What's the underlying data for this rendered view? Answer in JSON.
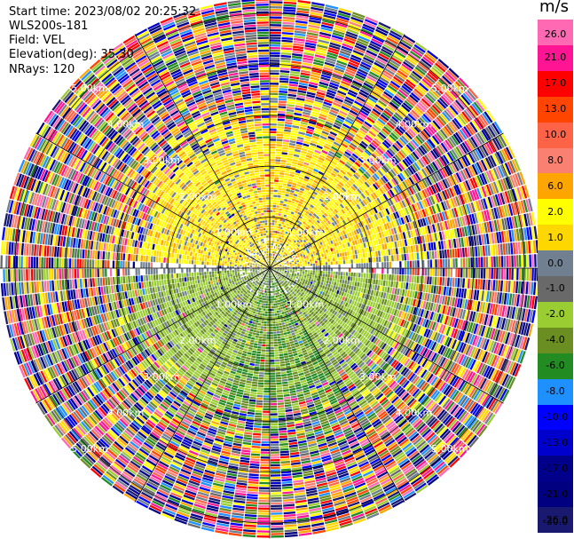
{
  "info": {
    "start_time": "Start time: 2023/08/02 20:25:32",
    "device": "WLS200s-181",
    "field": "Field: VEL",
    "elevation": "Elevation(deg): 35.30",
    "nrays": "NRays: 120"
  },
  "chart_data": {
    "type": "heatmap",
    "projection": "polar-ppi",
    "field": "VEL",
    "units": "m/s",
    "nrays": 120,
    "elevation_deg": 35.3,
    "range_ring_labels": [
      "1.00km",
      "2.00km",
      "3.00km",
      "4.00km",
      "5.00km"
    ],
    "range_rings_km": [
      1,
      2,
      3,
      4,
      5
    ],
    "max_range_km": 5.3,
    "colorbar": {
      "label": "m/s",
      "ticks": [
        "26.0",
        "21.0",
        "17.0",
        "13.0",
        "10.0",
        "8.0",
        "6.0",
        "2.0",
        "1.0",
        "0.0",
        "-1.0",
        "-2.0",
        "-4.0",
        "-6.0",
        "-8.0",
        "-10.0",
        "-13.0",
        "-17.0",
        "-21.0",
        "-26.0",
        "-30.0"
      ],
      "colors": [
        "#ff69b4",
        "#ff1493",
        "#ff0000",
        "#ff4500",
        "#ff6347",
        "#fa8072",
        "#ffa500",
        "#ffff00",
        "#ffd700",
        "#708090",
        "#696969",
        "#9acd32",
        "#6b8e23",
        "#228b22",
        "#1e90ff",
        "#0000ff",
        "#0000cd",
        "#00008b",
        "#000080",
        "#191970"
      ]
    }
  }
}
